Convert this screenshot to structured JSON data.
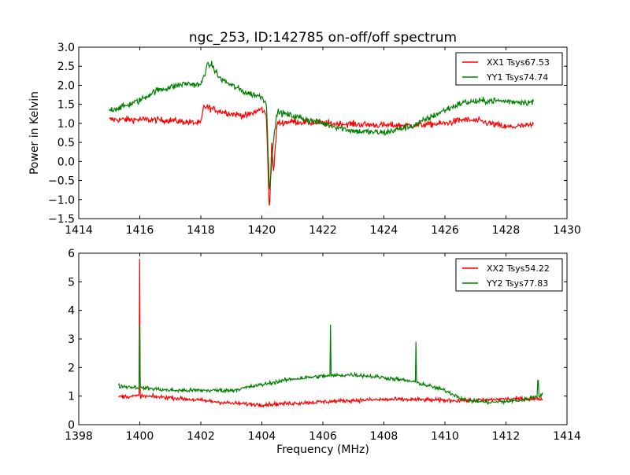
{
  "chart_data": [
    {
      "type": "line",
      "title": "ngc_253, ID:142785 on-off/off spectrum",
      "xlabel": "",
      "ylabel": "Power in Kelvin",
      "xlim": [
        1414,
        1430
      ],
      "ylim": [
        -1.5,
        3.0
      ],
      "xticks": [
        "1414",
        "1416",
        "1418",
        "1420",
        "1422",
        "1424",
        "1426",
        "1428",
        "1430"
      ],
      "yticks": [
        "−1.5",
        "−1.0",
        "−0.5",
        "0.0",
        "0.5",
        "1.0",
        "1.5",
        "2.0",
        "2.5",
        "3.0"
      ],
      "legend_position": "top-right",
      "grid": false,
      "x_range_data": [
        1415.0,
        1428.9
      ],
      "series": [
        {
          "name": "XX1 Tsys67.53",
          "color": "#ff0000",
          "profile": [
            [
              1415.0,
              1.1
            ],
            [
              1416.0,
              1.1
            ],
            [
              1417.0,
              1.08
            ],
            [
              1418.0,
              1.0
            ],
            [
              1418.1,
              1.45
            ],
            [
              1418.5,
              1.35
            ],
            [
              1419.0,
              1.25
            ],
            [
              1419.5,
              1.2
            ],
            [
              1420.0,
              1.38
            ],
            [
              1420.15,
              1.2
            ],
            [
              1420.25,
              -1.4
            ],
            [
              1420.32,
              0.5
            ],
            [
              1420.38,
              -0.3
            ],
            [
              1420.5,
              1.0
            ],
            [
              1421.0,
              1.05
            ],
            [
              1422.0,
              1.0
            ],
            [
              1423.0,
              0.98
            ],
            [
              1424.0,
              0.95
            ],
            [
              1425.0,
              0.95
            ],
            [
              1426.0,
              1.0
            ],
            [
              1426.6,
              1.1
            ],
            [
              1427.2,
              1.05
            ],
            [
              1428.0,
              0.9
            ],
            [
              1428.9,
              0.95
            ]
          ]
        },
        {
          "name": "YY1 Tsys74.74",
          "color": "#008000",
          "profile": [
            [
              1415.0,
              1.35
            ],
            [
              1415.5,
              1.45
            ],
            [
              1416.0,
              1.6
            ],
            [
              1416.5,
              1.85
            ],
            [
              1417.0,
              1.95
            ],
            [
              1417.5,
              2.05
            ],
            [
              1418.0,
              2.0
            ],
            [
              1418.2,
              2.5
            ],
            [
              1418.35,
              2.55
            ],
            [
              1418.6,
              2.2
            ],
            [
              1419.0,
              2.0
            ],
            [
              1419.5,
              1.8
            ],
            [
              1420.0,
              1.7
            ],
            [
              1420.15,
              1.55
            ],
            [
              1420.25,
              -0.8
            ],
            [
              1420.35,
              0.3
            ],
            [
              1420.5,
              1.3
            ],
            [
              1421.0,
              1.2
            ],
            [
              1422.0,
              1.0
            ],
            [
              1423.0,
              0.8
            ],
            [
              1424.0,
              0.75
            ],
            [
              1425.0,
              0.95
            ],
            [
              1426.0,
              1.35
            ],
            [
              1426.6,
              1.55
            ],
            [
              1427.5,
              1.6
            ],
            [
              1428.9,
              1.55
            ]
          ]
        }
      ]
    },
    {
      "type": "line",
      "title": "",
      "xlabel": "Frequency (MHz)",
      "ylabel": "",
      "xlim": [
        1398,
        1414
      ],
      "ylim": [
        0,
        6
      ],
      "xticks": [
        "1398",
        "1400",
        "1402",
        "1404",
        "1406",
        "1408",
        "1410",
        "1412",
        "1414"
      ],
      "yticks": [
        "0",
        "1",
        "2",
        "3",
        "4",
        "5",
        "6"
      ],
      "legend_position": "top-right",
      "grid": false,
      "x_range_data": [
        1399.3,
        1413.2
      ],
      "series": [
        {
          "name": "XX2 Tsys54.22",
          "color": "#ff0000",
          "profile": [
            [
              1399.3,
              0.98
            ],
            [
              1400.0,
              1.0
            ],
            [
              1401.0,
              0.95
            ],
            [
              1402.0,
              0.85
            ],
            [
              1403.0,
              0.75
            ],
            [
              1404.0,
              0.7
            ],
            [
              1405.0,
              0.75
            ],
            [
              1406.0,
              0.8
            ],
            [
              1407.0,
              0.85
            ],
            [
              1408.0,
              0.88
            ],
            [
              1409.0,
              0.88
            ],
            [
              1410.0,
              0.85
            ],
            [
              1411.0,
              0.85
            ],
            [
              1412.0,
              0.9
            ],
            [
              1413.2,
              0.9
            ]
          ],
          "spikes": [
            [
              1400.0,
              5.8
            ]
          ]
        },
        {
          "name": "YY2 Tsys77.83",
          "color": "#008000",
          "profile": [
            [
              1399.3,
              1.35
            ],
            [
              1400.0,
              1.3
            ],
            [
              1401.0,
              1.2
            ],
            [
              1402.0,
              1.2
            ],
            [
              1403.0,
              1.2
            ],
            [
              1404.0,
              1.4
            ],
            [
              1405.0,
              1.6
            ],
            [
              1406.0,
              1.7
            ],
            [
              1407.0,
              1.75
            ],
            [
              1408.0,
              1.65
            ],
            [
              1409.0,
              1.5
            ],
            [
              1410.0,
              1.2
            ],
            [
              1410.7,
              0.85
            ],
            [
              1411.5,
              0.78
            ],
            [
              1412.5,
              0.85
            ],
            [
              1413.2,
              1.05
            ]
          ],
          "spikes": [
            [
              1400.0,
              3.5
            ],
            [
              1406.25,
              3.5
            ],
            [
              1409.05,
              2.9
            ],
            [
              1413.05,
              1.55
            ]
          ]
        }
      ]
    }
  ]
}
